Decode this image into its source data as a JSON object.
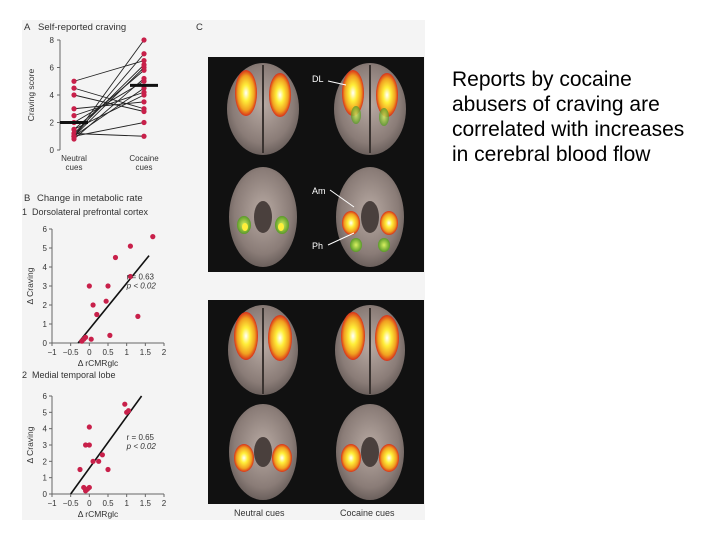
{
  "figure": {
    "panel_a": {
      "letter": "A",
      "title": "Self-reported craving",
      "ylabel": "Craving score",
      "yticks": [
        "0",
        "2",
        "4",
        "6",
        "8"
      ],
      "xcats": [
        [
          "Neutral",
          "cues"
        ],
        [
          "Cocaine",
          "cues"
        ]
      ]
    },
    "panel_b": {
      "letter": "B",
      "title": "Change in metabolic rate",
      "sub1_num": "1",
      "sub1_title": "Dorsolateral prefrontal cortex",
      "sub2_num": "2",
      "sub2_title": "Medial temporal lobe",
      "ylabel": "Δ Craving",
      "xlabel": "Δ rCMRglc",
      "xticks": [
        "−1",
        "−0.5",
        "0",
        "0.5",
        "1",
        "1.5",
        "2"
      ],
      "yticks": [
        "0",
        "1",
        "2",
        "3",
        "4",
        "5",
        "6"
      ],
      "stats1_r": "r = 0.63",
      "stats1_p": "p < 0.02",
      "stats2_r": "r = 0.65",
      "stats2_p": "p < 0.02"
    },
    "panel_c": {
      "letter": "C",
      "label_dl": "DL",
      "label_am": "Am",
      "label_ph": "Ph",
      "x_neutral": "Neutral cues",
      "x_cocaine": "Cocaine cues"
    }
  },
  "caption": "Reports by cocaine abusers of craving are correlated with increases in cerebral blood flow",
  "chart_data": [
    {
      "type": "line",
      "title": "Self-reported craving",
      "ylabel": "Craving score",
      "categories": [
        "Neutral cues",
        "Cocaine cues"
      ],
      "ylim": [
        0,
        8
      ],
      "series": [
        {
          "values": [
            1.0,
            8.0
          ]
        },
        {
          "values": [
            1.0,
            7.0
          ]
        },
        {
          "values": [
            1.2,
            6.2
          ]
        },
        {
          "values": [
            1.5,
            5.8
          ]
        },
        {
          "values": [
            0.8,
            5.2
          ]
        },
        {
          "values": [
            2.0,
            5.0
          ]
        },
        {
          "values": [
            1.0,
            4.5
          ]
        },
        {
          "values": [
            1.5,
            4.0
          ]
        },
        {
          "values": [
            2.5,
            4.2
          ]
        },
        {
          "values": [
            3.0,
            3.5
          ]
        },
        {
          "values": [
            4.5,
            3.0
          ]
        },
        {
          "values": [
            5.0,
            6.5
          ]
        },
        {
          "values": [
            4.0,
            2.8
          ]
        },
        {
          "values": [
            1.0,
            2.0
          ]
        },
        {
          "values": [
            1.2,
            1.0
          ]
        },
        {
          "values": [
            1.0,
            6.0
          ]
        }
      ],
      "means": [
        2.0,
        4.7
      ],
      "grid": false
    },
    {
      "type": "scatter",
      "title": "Dorsolateral prefrontal cortex",
      "xlabel": "Δ rCMRglc",
      "ylabel": "Δ Craving",
      "xlim": [
        -1,
        2
      ],
      "ylim": [
        0,
        6
      ],
      "points": [
        [
          -0.2,
          0.1
        ],
        [
          -0.15,
          0.2
        ],
        [
          -0.1,
          0.3
        ],
        [
          0.05,
          0.2
        ],
        [
          0.1,
          2.0
        ],
        [
          0.0,
          3.0
        ],
        [
          0.2,
          1.5
        ],
        [
          0.45,
          2.2
        ],
        [
          0.5,
          3.0
        ],
        [
          0.55,
          0.4
        ],
        [
          0.7,
          4.5
        ],
        [
          1.1,
          3.5
        ],
        [
          1.1,
          5.1
        ],
        [
          1.3,
          1.4
        ],
        [
          1.7,
          5.6
        ]
      ],
      "fit": [
        [
          -0.3,
          0.0
        ],
        [
          1.6,
          4.6
        ]
      ],
      "annotations": [
        "r = 0.63",
        "p < 0.02"
      ],
      "grid": false
    },
    {
      "type": "scatter",
      "title": "Medial temporal lobe",
      "xlabel": "Δ rCMRglc",
      "ylabel": "Δ Craving",
      "xlim": [
        -1,
        2
      ],
      "ylim": [
        0,
        6
      ],
      "points": [
        [
          -0.25,
          1.5
        ],
        [
          -0.15,
          0.4
        ],
        [
          -0.1,
          0.2
        ],
        [
          -0.05,
          0.3
        ],
        [
          0.0,
          0.4
        ],
        [
          -0.1,
          3.0
        ],
        [
          0.0,
          3.0
        ],
        [
          0.0,
          4.1
        ],
        [
          0.1,
          2.0
        ],
        [
          0.25,
          2.0
        ],
        [
          0.35,
          2.4
        ],
        [
          0.5,
          1.5
        ],
        [
          1.0,
          5.0
        ],
        [
          1.05,
          5.1
        ],
        [
          0.95,
          5.5
        ]
      ],
      "fit": [
        [
          -0.5,
          0.0
        ],
        [
          1.4,
          6.0
        ]
      ],
      "annotations": [
        "r = 0.65",
        "p < 0.02"
      ],
      "grid": false
    }
  ]
}
